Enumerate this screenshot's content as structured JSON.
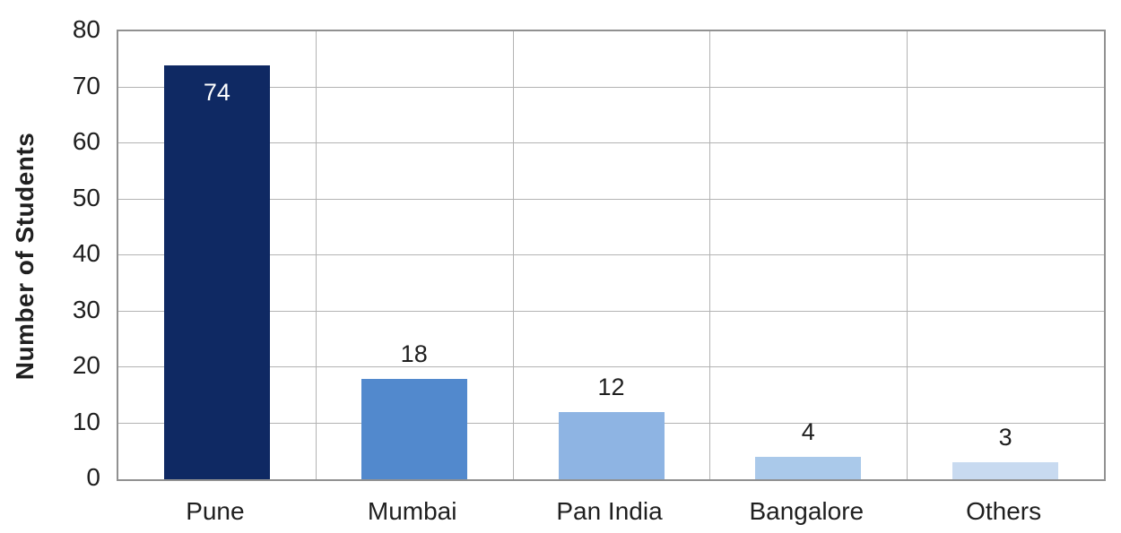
{
  "chart_data": {
    "type": "bar",
    "title": "",
    "categories": [
      "Pune",
      "Mumbai",
      "Pan India",
      "Bangalore",
      "Others"
    ],
    "values": [
      74,
      18,
      12,
      4,
      3
    ],
    "bar_colors": [
      "#0f2963",
      "#5289cd",
      "#8eb4e3",
      "#aac9ea",
      "#c8daf0"
    ],
    "value_label_positions": [
      "inside",
      "above",
      "above",
      "above",
      "above"
    ],
    "value_label_colors": [
      "#ffffff",
      "#1f1f1f",
      "#1f1f1f",
      "#1f1f1f",
      "#1f1f1f"
    ],
    "xlabel": "",
    "ylabel": "Number of Students",
    "ylim": [
      0,
      80
    ],
    "ytick_step": 10,
    "yticks": [
      0,
      10,
      20,
      30,
      40,
      50,
      60,
      70,
      80
    ],
    "grid": {
      "horizontal": true,
      "vertical_category_separators": true,
      "full_border": true
    },
    "legend": "none",
    "colors": {
      "background": "#ffffff",
      "gridline": "#b3b3b3",
      "plot_border": "#919191",
      "axis_text": "#1f1f1f"
    }
  }
}
